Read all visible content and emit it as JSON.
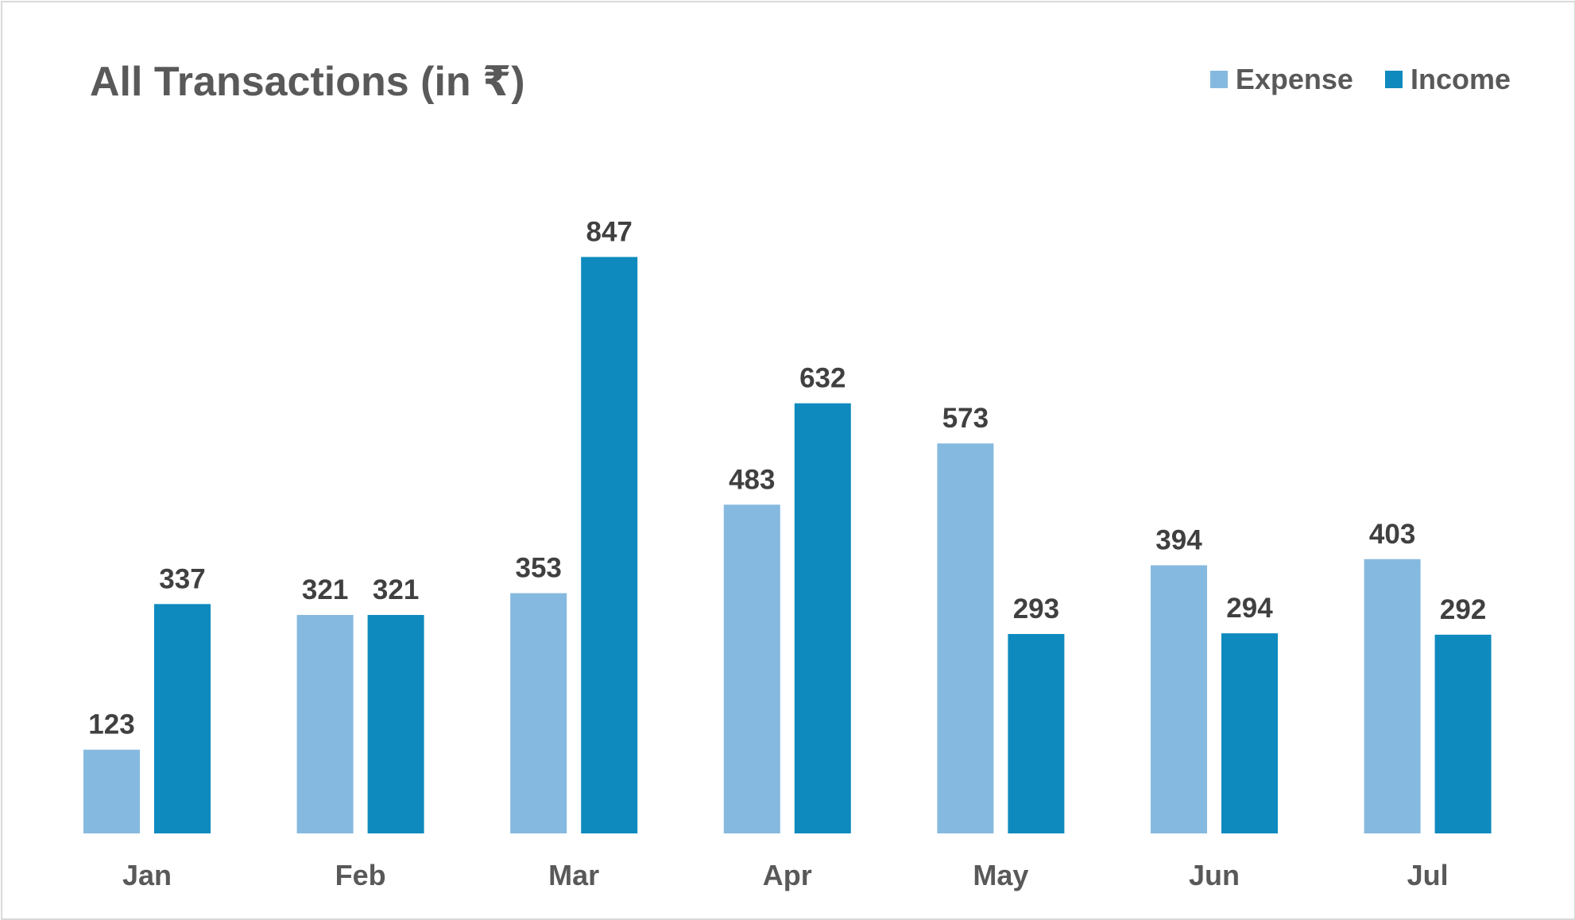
{
  "chart_data": {
    "type": "bar",
    "title": "All Transactions (in ₹)",
    "xlabel": "",
    "ylabel": "",
    "categories": [
      "Jan",
      "Feb",
      "Mar",
      "Apr",
      "May",
      "Jun",
      "Jul"
    ],
    "series": [
      {
        "name": "Expense",
        "color": "#86B9DF",
        "values": [
          123,
          321,
          353,
          483,
          573,
          394,
          403
        ]
      },
      {
        "name": "Income",
        "color": "#0E8ABE",
        "values": [
          337,
          321,
          847,
          632,
          293,
          294,
          292
        ]
      }
    ],
    "ylim": [
      0,
      1000
    ],
    "grid": false,
    "legend_position": "top-right",
    "data_labels": true
  }
}
